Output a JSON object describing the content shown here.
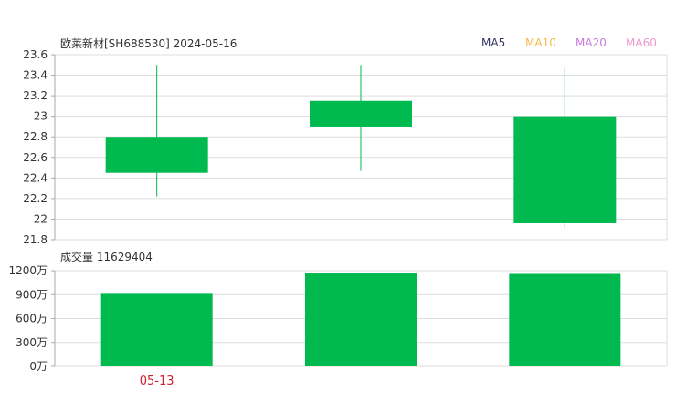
{
  "header": {
    "title": "欧莱新材[SH688530] 2024-05-16",
    "volume_label": "成交量 11629404"
  },
  "legend": [
    {
      "label": "MA5",
      "color": "#333366"
    },
    {
      "label": "MA10",
      "color": "#f5b94a"
    },
    {
      "label": "MA20",
      "color": "#c77ddb"
    },
    {
      "label": "MA60",
      "color": "#ee99cc"
    }
  ],
  "colors": {
    "down": "#00b94f",
    "grid": "#dddddd",
    "axis": "#aaaaaa",
    "date_label": "#d0202f"
  },
  "chart_data": [
    {
      "type": "candlestick",
      "title": "欧莱新材[SH688530] 2024-05-16",
      "y_ticks": [
        "23.6",
        "23.4",
        "23.2",
        "23",
        "22.8",
        "22.6",
        "22.4",
        "22.2",
        "22",
        "21.8"
      ],
      "ylim": [
        21.8,
        23.6
      ],
      "candles": [
        {
          "open": 22.8,
          "close": 22.45,
          "high": 23.5,
          "low": 22.22
        },
        {
          "open": 23.15,
          "close": 22.9,
          "high": 23.5,
          "low": 22.47
        },
        {
          "open": 23.0,
          "close": 21.96,
          "high": 23.48,
          "low": 21.91
        }
      ]
    },
    {
      "type": "bar",
      "title": "成交量 11629404",
      "y_ticks": [
        "1200万",
        "900万",
        "600万",
        "300万",
        "0万"
      ],
      "ylim": [
        0,
        1200
      ],
      "unit": "万",
      "values": [
        910,
        1165,
        1160
      ],
      "x_labels": [
        "05-13",
        "",
        ""
      ]
    }
  ]
}
